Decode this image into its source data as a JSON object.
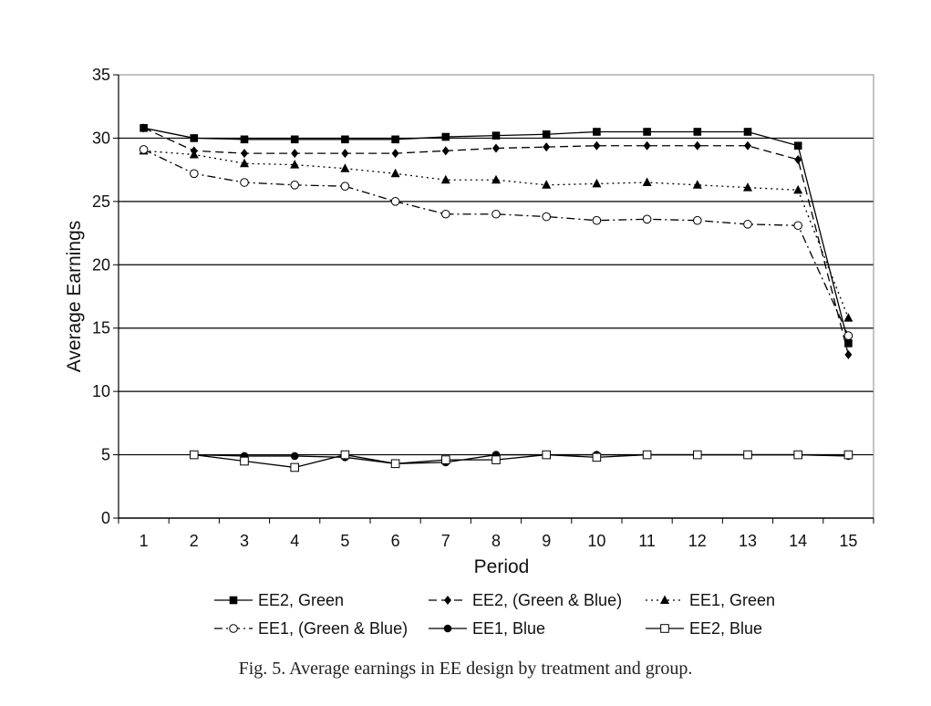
{
  "caption": "Fig. 5. Average earnings in EE design by treatment and group.",
  "chart_data": {
    "type": "line",
    "title": "",
    "xlabel": "Period",
    "ylabel": "Average Earnings",
    "x": [
      1,
      2,
      3,
      4,
      5,
      6,
      7,
      8,
      9,
      10,
      11,
      12,
      13,
      14,
      15
    ],
    "ylim": [
      0,
      35
    ],
    "yticks": [
      0,
      5,
      10,
      15,
      20,
      25,
      30,
      35
    ],
    "grid": "horizontal",
    "legend_position": "bottom",
    "series": [
      {
        "name": "EE2, Green",
        "marker": "square-filled",
        "dash": "solid",
        "values": [
          30.8,
          30.0,
          29.9,
          29.9,
          29.9,
          29.9,
          30.1,
          30.2,
          30.3,
          30.5,
          30.5,
          30.5,
          30.5,
          29.4,
          13.8
        ]
      },
      {
        "name": "EE2,  (Green & Blue)",
        "marker": "diamond-filled",
        "dash": "dash",
        "values": [
          30.8,
          29.0,
          28.8,
          28.8,
          28.8,
          28.8,
          29.0,
          29.2,
          29.3,
          29.4,
          29.4,
          29.4,
          29.4,
          28.3,
          12.9
        ]
      },
      {
        "name": "EE1, Green",
        "marker": "triangle-filled",
        "dash": "dot",
        "values": [
          29.0,
          28.7,
          28.0,
          27.9,
          27.6,
          27.2,
          26.7,
          26.7,
          26.3,
          26.4,
          26.5,
          26.3,
          26.1,
          25.9,
          15.8
        ]
      },
      {
        "name": "EE1, (Green & Blue)",
        "marker": "circle-open",
        "dash": "dashdot",
        "values": [
          29.1,
          27.2,
          26.5,
          26.3,
          26.2,
          25.0,
          24.0,
          24.0,
          23.8,
          23.5,
          23.6,
          23.5,
          23.2,
          23.1,
          14.4
        ]
      },
      {
        "name": "EE1, Blue",
        "marker": "circle-filled",
        "dash": "solid",
        "values": [
          null,
          5.0,
          4.9,
          4.9,
          4.8,
          4.3,
          4.4,
          5.0,
          5.0,
          5.0,
          5.0,
          5.0,
          5.0,
          5.0,
          4.9
        ]
      },
      {
        "name": "EE2, Blue",
        "marker": "square-open",
        "dash": "solid",
        "values": [
          null,
          5.0,
          4.5,
          4.0,
          5.0,
          4.3,
          4.6,
          4.6,
          5.0,
          4.8,
          5.0,
          5.0,
          5.0,
          5.0,
          5.0
        ]
      }
    ]
  }
}
